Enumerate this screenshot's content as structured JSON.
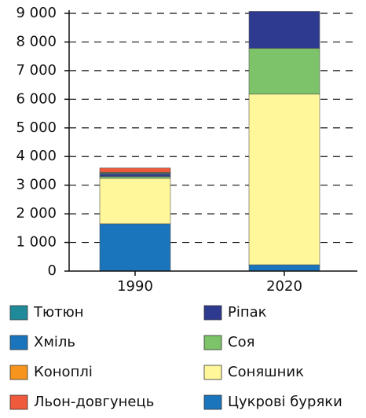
{
  "chart_data": {
    "type": "stacked_bar",
    "categories": [
      "1990",
      "2020"
    ],
    "series": [
      {
        "name": "Цукрові буряки",
        "color": "#1a75bc",
        "values": [
          1650,
          220
        ]
      },
      {
        "name": "Соняшник",
        "color": "#fff799",
        "values": [
          1590,
          5960
        ]
      },
      {
        "name": "Соя",
        "color": "#7cc36a",
        "values": [
          60,
          1600
        ]
      },
      {
        "name": "Ріпак",
        "color": "#2e3a8f",
        "values": [
          80,
          1290
        ]
      },
      {
        "name": "Хміль",
        "color": "#1a75bc",
        "values": [
          20,
          0
        ]
      },
      {
        "name": "Тютюн",
        "color": "#1f8a9a",
        "values": [
          30,
          0
        ]
      },
      {
        "name": "Коноплі",
        "color": "#f7941d",
        "values": [
          20,
          0
        ]
      },
      {
        "name": "Льон-довгунець",
        "color": "#ee5a3b",
        "values": [
          150,
          0
        ]
      }
    ],
    "ylim": [
      0,
      9000
    ],
    "yticks": [
      0,
      {
        "value": 1000,
        "label": "1 000"
      },
      {
        "value": 2000,
        "label": "2 000"
      },
      {
        "value": 3000,
        "label": "3 000"
      },
      {
        "value": 4000,
        "label": "4 000"
      },
      {
        "value": 5000,
        "label": "5 000"
      },
      {
        "value": 6000,
        "label": "6 000"
      },
      {
        "value": 7000,
        "label": "7 000"
      },
      {
        "value": 8000,
        "label": "8 000"
      },
      {
        "value": 9000,
        "label": "9 000"
      }
    ],
    "grid": true
  }
}
